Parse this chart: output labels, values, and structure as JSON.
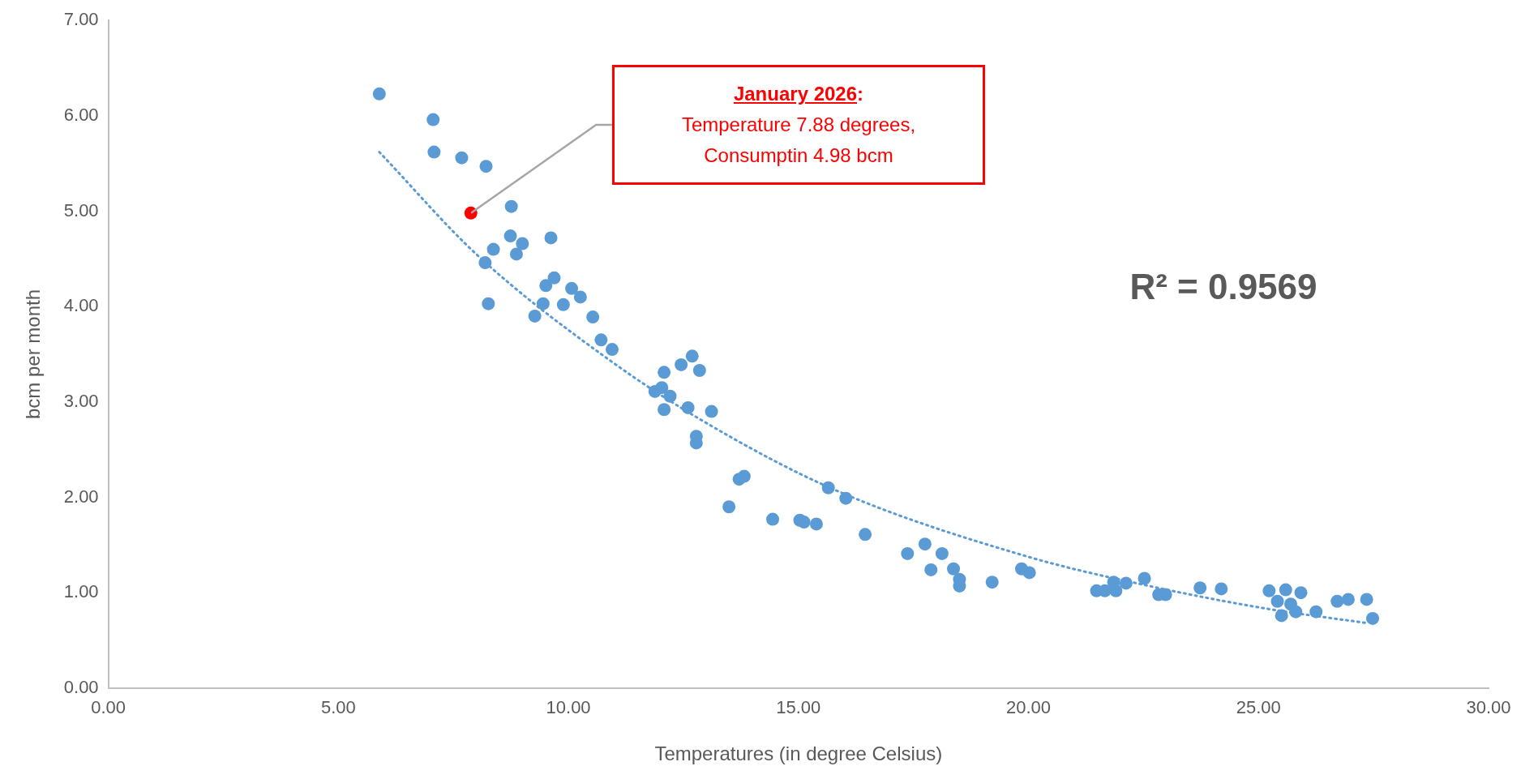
{
  "chart_data": {
    "type": "scatter",
    "xlabel": "Temperatures (in degree Celsius)",
    "ylabel": "bcm per month",
    "xlim": [
      0,
      30
    ],
    "xticks": [
      {
        "value": 0,
        "label": "0.00"
      },
      {
        "value": 5,
        "label": "5.00"
      },
      {
        "value": 10,
        "label": "10.00"
      },
      {
        "value": 15,
        "label": "15.00"
      },
      {
        "value": 20,
        "label": "20.00"
      },
      {
        "value": 25,
        "label": "25.00"
      },
      {
        "value": 30,
        "label": "30.00"
      }
    ],
    "ylim": [
      0,
      7
    ],
    "yticks": [
      {
        "value": 0,
        "label": "0.00"
      },
      {
        "value": 1,
        "label": "1.00"
      },
      {
        "value": 2,
        "label": "2.00"
      },
      {
        "value": 3,
        "label": "3.00"
      },
      {
        "value": 4,
        "label": "4.00"
      },
      {
        "value": 5,
        "label": "5.00"
      },
      {
        "value": 6,
        "label": "6.00"
      },
      {
        "value": 7,
        "label": "7.00"
      }
    ],
    "grid": false,
    "legend": false,
    "marker": "circle",
    "series": [
      {
        "color": "#5b9bd5",
        "x": [
          5.89,
          7.06,
          7.08,
          7.68,
          8.21,
          8.76,
          8.74,
          9.0,
          8.37,
          8.19,
          8.87,
          9.62,
          8.26,
          9.69,
          9.51,
          10.07,
          10.26,
          9.45,
          9.27,
          9.89,
          10.53,
          10.71,
          10.95,
          12.69,
          12.45,
          12.85,
          12.08,
          11.88,
          12.03,
          12.21,
          12.08,
          12.6,
          13.11,
          12.78,
          12.78,
          13.71,
          13.82,
          13.49,
          14.44,
          15.03,
          15.12,
          15.39,
          15.65,
          16.03,
          16.45,
          17.37,
          17.75,
          17.88,
          18.12,
          18.37,
          18.5,
          18.5,
          19.21,
          19.85,
          20.02,
          21.48,
          21.66,
          21.85,
          21.9,
          22.12,
          22.52,
          22.83,
          22.98,
          23.73,
          24.19,
          25.23,
          25.59,
          25.92,
          25.5,
          25.81,
          26.25,
          25.7,
          25.41,
          26.71,
          26.95,
          27.35,
          27.48
        ],
        "values": [
          6.23,
          5.96,
          5.62,
          5.56,
          5.47,
          5.05,
          4.74,
          4.66,
          4.6,
          4.46,
          4.55,
          4.72,
          4.03,
          4.3,
          4.22,
          4.19,
          4.1,
          4.03,
          3.9,
          4.02,
          3.89,
          3.65,
          3.55,
          3.48,
          3.39,
          3.33,
          3.31,
          3.11,
          3.15,
          3.06,
          2.92,
          2.94,
          2.9,
          2.64,
          2.57,
          2.19,
          2.22,
          1.9,
          1.77,
          1.76,
          1.74,
          1.72,
          2.1,
          1.99,
          1.61,
          1.41,
          1.51,
          1.24,
          1.41,
          1.25,
          1.14,
          1.07,
          1.11,
          1.25,
          1.21,
          1.02,
          1.02,
          1.11,
          1.02,
          1.1,
          1.15,
          0.98,
          0.98,
          1.05,
          1.04,
          1.02,
          1.03,
          1.0,
          0.76,
          0.8,
          0.8,
          0.88,
          0.91,
          0.91,
          0.93,
          0.93,
          0.73
        ]
      },
      {
        "color": "#ff0000",
        "x": [
          7.88
        ],
        "values": [
          4.98
        ]
      },
      {
        "type": "line",
        "color": "#5b9bd5",
        "line_style": "dotted",
        "marker": "none",
        "x": [
          5.89,
          8.04,
          10.86,
          12.89,
          15.78,
          20.04,
          22.63,
          25.08,
          27.37
        ],
        "values": [
          5.62,
          4.53,
          3.45,
          2.81,
          2.08,
          1.37,
          1.07,
          0.84,
          0.68
        ]
      }
    ],
    "annotations": [
      "January 2026:\nTemperature 7.88 degrees,\nConsumptin 4.98 bcm",
      "R² = 0.9569"
    ]
  }
}
